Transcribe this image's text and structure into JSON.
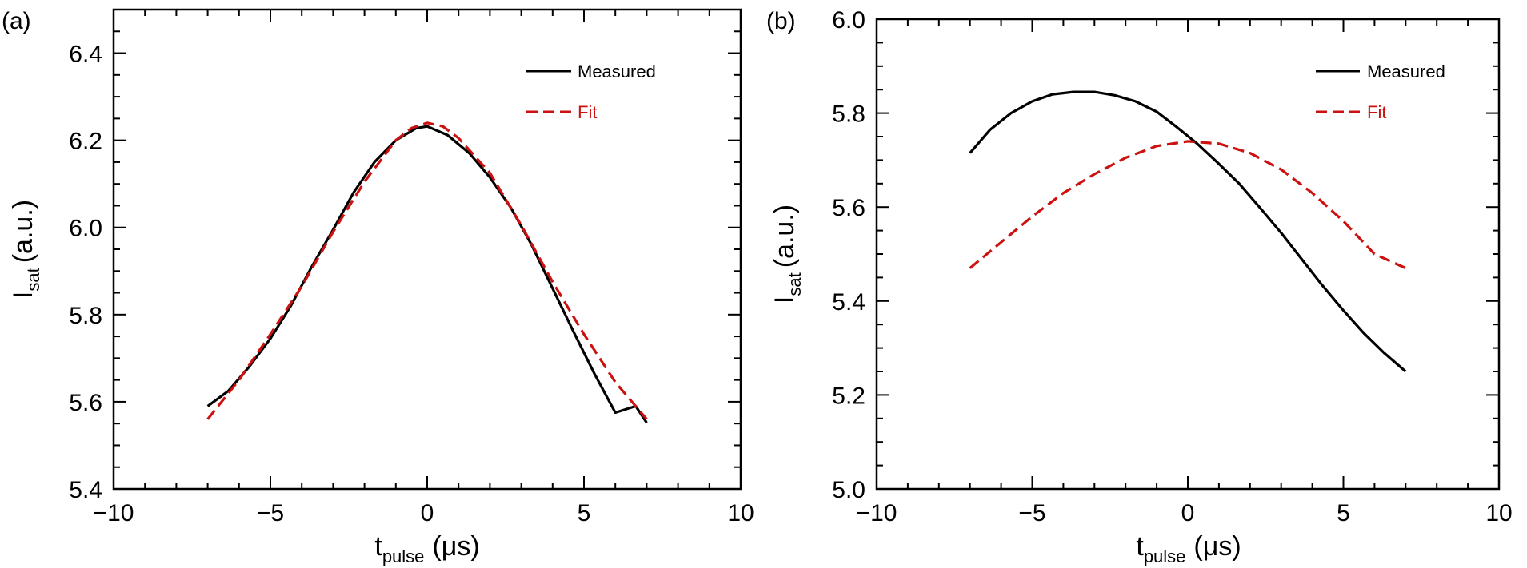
{
  "colors": {
    "measured": "#000000",
    "fit": "#cc1111",
    "axis": "#000000",
    "background": "#ffffff"
  },
  "chart_data": [
    {
      "type": "line",
      "panel_label": "(a)",
      "xlabel": {
        "base": "t",
        "sub": "pulse",
        "unit": "(μs)"
      },
      "ylabel": {
        "base": "I",
        "sub": "sat",
        "unit": "(a.u.)"
      },
      "xlim": [
        -10,
        10
      ],
      "ylim": [
        5.4,
        6.5
      ],
      "x_major_ticks": [
        -10,
        -5,
        0,
        5,
        10
      ],
      "x_tick_labels": [
        "−10",
        "−5",
        "0",
        "5",
        "10"
      ],
      "y_major_ticks": [
        5.4,
        5.6,
        5.8,
        6.0,
        6.2,
        6.4
      ],
      "y_tick_labels": [
        "5.4",
        "5.6",
        "5.8",
        "6.0",
        "6.2",
        "6.4"
      ],
      "grid": false,
      "legend_position": "top-right",
      "series": [
        {
          "name": "Measured",
          "style": "solid",
          "x": [
            -7.0,
            -6.34,
            -5.68,
            -5.0,
            -4.35,
            -3.68,
            -3.0,
            -2.35,
            -1.68,
            -1.0,
            -0.35,
            0.0,
            0.65,
            1.35,
            2.0,
            2.67,
            3.33,
            4.0,
            4.67,
            5.33,
            6.0,
            6.65,
            7.0
          ],
          "y": [
            5.59,
            5.625,
            5.68,
            5.745,
            5.82,
            5.91,
            5.995,
            6.08,
            6.15,
            6.2,
            6.228,
            6.232,
            6.212,
            6.17,
            6.115,
            6.045,
            5.96,
            5.86,
            5.76,
            5.665,
            5.575,
            5.59,
            5.552
          ]
        },
        {
          "name": "Fit",
          "style": "dashed",
          "x": [
            -7.0,
            -6.0,
            -5.0,
            -4.0,
            -3.0,
            -2.0,
            -1.0,
            -0.5,
            0.0,
            0.5,
            1.0,
            2.0,
            3.0,
            4.0,
            5.0,
            6.0,
            7.0
          ],
          "y": [
            5.56,
            5.65,
            5.755,
            5.865,
            5.99,
            6.105,
            6.2,
            6.228,
            6.24,
            6.232,
            6.205,
            6.125,
            6.005,
            5.875,
            5.755,
            5.645,
            5.56
          ]
        }
      ]
    },
    {
      "type": "line",
      "panel_label": "(b)",
      "xlabel": {
        "base": "t",
        "sub": "pulse",
        "unit": "(μs)"
      },
      "ylabel": {
        "base": "I",
        "sub": "sat",
        "unit": "(a.u.)"
      },
      "xlim": [
        -10,
        10
      ],
      "ylim": [
        5.0,
        6.0
      ],
      "x_major_ticks": [
        -10,
        -5,
        0,
        5,
        10
      ],
      "x_tick_labels": [
        "−10",
        "−5",
        "0",
        "5",
        "10"
      ],
      "y_major_ticks": [
        5.0,
        5.2,
        5.4,
        5.6,
        5.8,
        6.0
      ],
      "y_tick_labels": [
        "5.0",
        "5.2",
        "5.4",
        "5.6",
        "5.8",
        "6.0"
      ],
      "grid": false,
      "legend_position": "top-right",
      "series": [
        {
          "name": "Measured",
          "style": "solid",
          "x": [
            -7.0,
            -6.35,
            -5.68,
            -5.0,
            -4.35,
            -3.68,
            -3.0,
            -2.35,
            -1.68,
            -1.0,
            -0.35,
            0.3,
            0.95,
            1.65,
            2.3,
            3.0,
            3.65,
            4.3,
            5.0,
            5.65,
            6.3,
            7.0
          ],
          "y": [
            5.715,
            5.765,
            5.8,
            5.825,
            5.84,
            5.845,
            5.845,
            5.838,
            5.825,
            5.803,
            5.77,
            5.735,
            5.695,
            5.65,
            5.6,
            5.545,
            5.49,
            5.435,
            5.38,
            5.332,
            5.29,
            5.25
          ]
        },
        {
          "name": "Fit",
          "style": "dashed",
          "x": [
            -7.0,
            -6.0,
            -5.0,
            -4.0,
            -3.0,
            -2.0,
            -1.0,
            0.0,
            1.0,
            2.0,
            3.0,
            4.0,
            5.0,
            6.0,
            7.0
          ],
          "y": [
            5.47,
            5.525,
            5.58,
            5.63,
            5.67,
            5.705,
            5.73,
            5.74,
            5.735,
            5.715,
            5.68,
            5.63,
            5.57,
            5.5,
            5.47
          ]
        }
      ]
    }
  ]
}
